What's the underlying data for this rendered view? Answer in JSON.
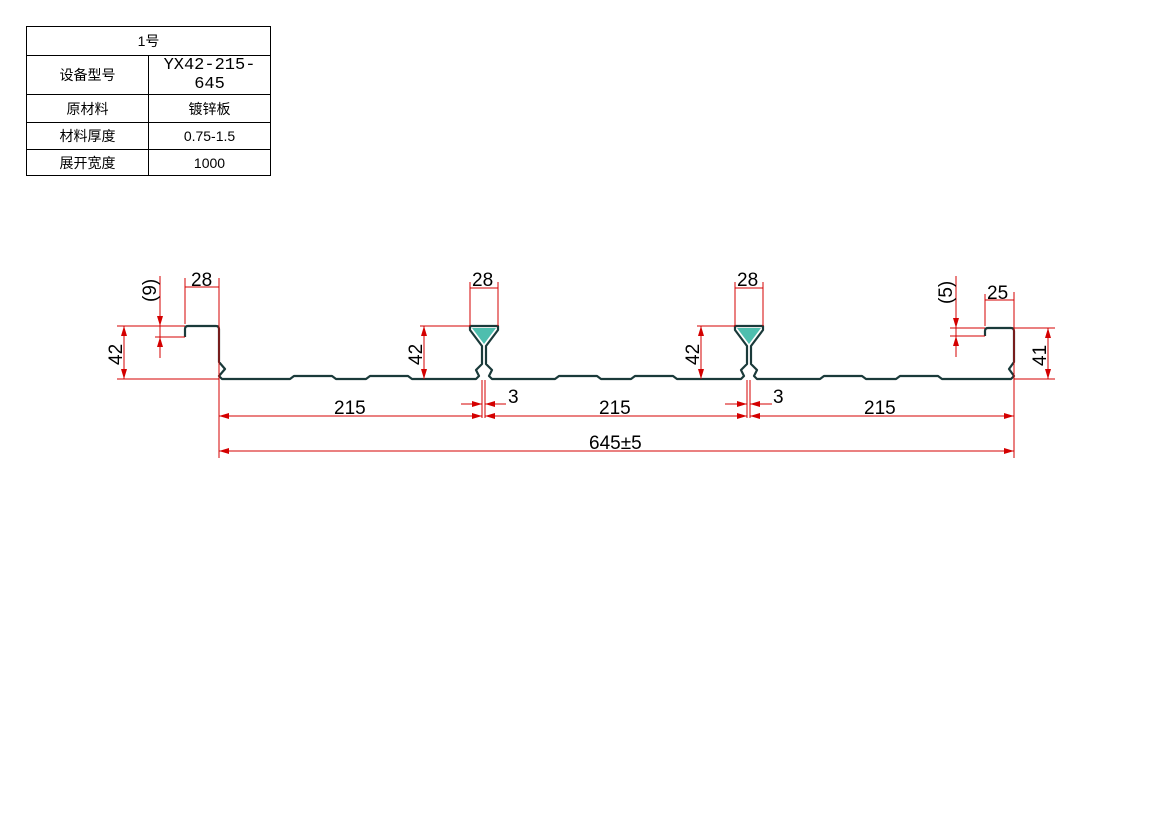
{
  "spec_table": {
    "title": "1号",
    "rows": [
      {
        "label": "设备型号",
        "value": "YX42-215-645"
      },
      {
        "label": "原材料",
        "value": "镀锌板"
      },
      {
        "label": "材料厚度",
        "value": "0.75-1.5"
      },
      {
        "label": "展开宽度",
        "value": "1000"
      }
    ]
  },
  "drawing": {
    "profile_color": "#2fb3a0",
    "dimension_color": "#d40000",
    "dims": {
      "left_lip_width": "28",
      "left_lip_depth": "(9)",
      "left_height": "42",
      "rib1_width": "28",
      "rib1_height": "42",
      "rib1_gap": "3",
      "rib2_width": "28",
      "rib2_height": "42",
      "rib2_gap": "3",
      "right_lip_depth": "(5)",
      "right_lip_width": "25",
      "right_height": "41",
      "span1": "215",
      "span2": "215",
      "span3": "215",
      "total_width": "645±5"
    }
  }
}
